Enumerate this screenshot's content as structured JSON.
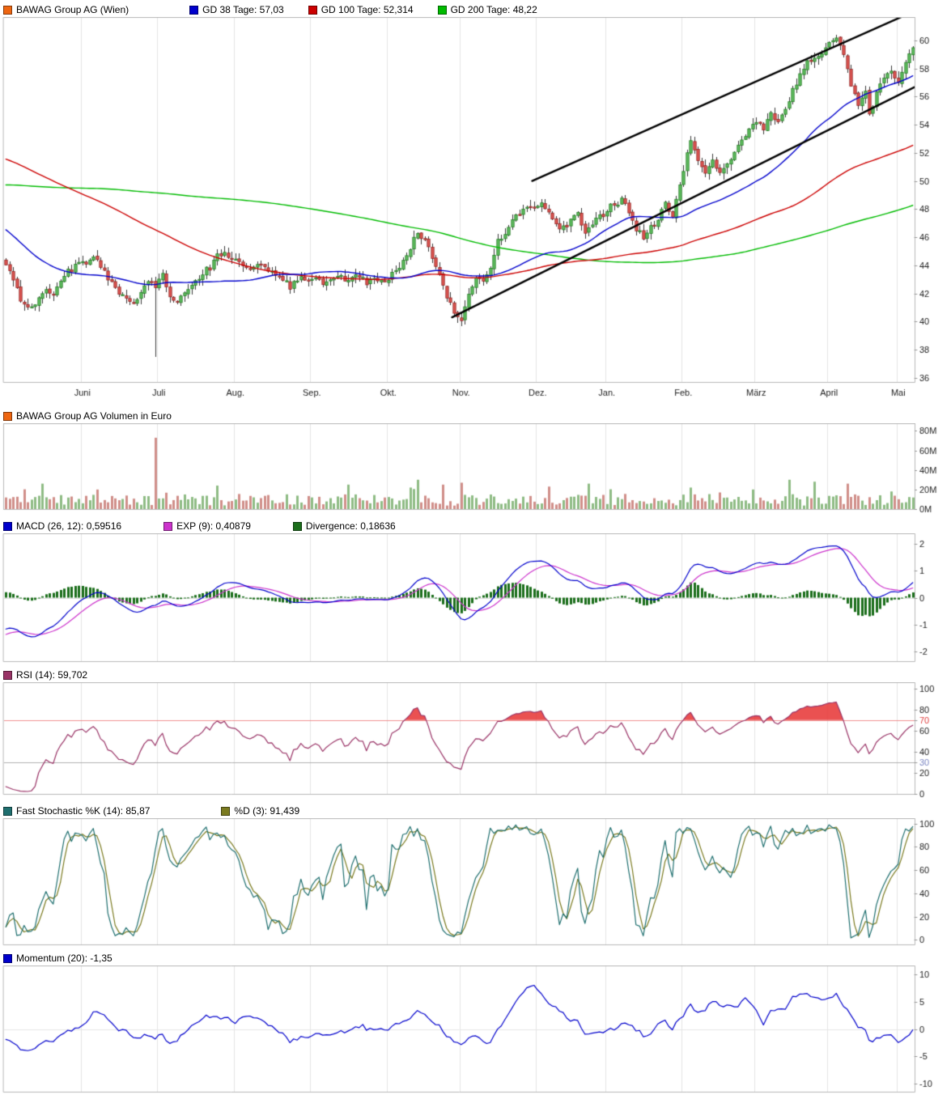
{
  "legends": {
    "price": {
      "items": [
        {
          "label": "BAWAG Group AG (Wien)",
          "color": "#ee6611"
        },
        {
          "label": "GD 38 Tage: 57,03",
          "color": "#0000cc"
        },
        {
          "label": "GD 100 Tage: 52,314",
          "color": "#cc0000"
        },
        {
          "label": "GD 200 Tage: 48,22",
          "color": "#00bb00"
        }
      ]
    },
    "volume": {
      "items": [
        {
          "label": "BAWAG Group AG Volumen in Euro",
          "color": "#ee6611"
        }
      ]
    },
    "macd": {
      "items": [
        {
          "label": "MACD (26, 12): 0,59516",
          "color": "#0000cc"
        },
        {
          "label": "EXP (9): 0,40879",
          "color": "#cc33cc"
        },
        {
          "label": "Divergence: 0,18636",
          "color": "#1b6e1b"
        }
      ]
    },
    "rsi": {
      "items": [
        {
          "label": "RSI (14): 59,702",
          "color": "#993366"
        }
      ]
    },
    "stochastic": {
      "items": [
        {
          "label": "Fast Stochastic %K (14): 85,87",
          "color": "#1f6f6f"
        },
        {
          "label": "%D (3): 91,439",
          "color": "#7a7a1f"
        }
      ]
    },
    "momentum": {
      "items": [
        {
          "label": "Momentum (20): -1,35",
          "color": "#0000cc"
        }
      ]
    }
  },
  "chart_data": [
    {
      "panel": "price",
      "type": "candlestick",
      "title": "BAWAG Group AG (Wien)",
      "days_total": 250,
      "x_ticks": {
        "labels": [
          "Juni",
          "Juli",
          "Aug.",
          "Sep.",
          "Okt.",
          "Nov.",
          "Dez.",
          "Jan.",
          "Feb.",
          "März",
          "April",
          "Mai"
        ],
        "days": [
          21,
          42,
          63,
          84,
          105,
          125,
          146,
          165,
          186,
          206,
          226,
          245
        ]
      },
      "y_ticks": [
        36,
        38,
        40,
        42,
        44,
        46,
        48,
        50,
        52,
        54,
        56,
        58,
        60
      ],
      "y_range": [
        35.7,
        61.6
      ],
      "close_anchors": [
        [
          0,
          43.8
        ],
        [
          2,
          43.0
        ],
        [
          4,
          41.6
        ],
        [
          6,
          40.9
        ],
        [
          8,
          41.3
        ],
        [
          10,
          42.2
        ],
        [
          13,
          42.0
        ],
        [
          16,
          43.4
        ],
        [
          19,
          43.9
        ],
        [
          22,
          44.3
        ],
        [
          24,
          44.7
        ],
        [
          26,
          43.8
        ],
        [
          29,
          42.6
        ],
        [
          32,
          41.8
        ],
        [
          35,
          41.4
        ],
        [
          38,
          42.6
        ],
        [
          40,
          42.9
        ],
        [
          41,
          42.6
        ],
        [
          43,
          43.3
        ],
        [
          45,
          41.9
        ],
        [
          47,
          41.4
        ],
        [
          50,
          42.2
        ],
        [
          53,
          43.1
        ],
        [
          56,
          43.9
        ],
        [
          58,
          44.6
        ],
        [
          60,
          44.9
        ],
        [
          63,
          44.2
        ],
        [
          66,
          43.7
        ],
        [
          69,
          43.9
        ],
        [
          72,
          43.6
        ],
        [
          75,
          43.2
        ],
        [
          78,
          42.5
        ],
        [
          81,
          43.0
        ],
        [
          84,
          43.1
        ],
        [
          87,
          42.8
        ],
        [
          90,
          43.3
        ],
        [
          93,
          42.9
        ],
        [
          96,
          43.2
        ],
        [
          99,
          42.8
        ],
        [
          102,
          43.1
        ],
        [
          105,
          43.0
        ],
        [
          107,
          43.6
        ],
        [
          109,
          44.4
        ],
        [
          111,
          45.3
        ],
        [
          113,
          46.2
        ],
        [
          115,
          45.9
        ],
        [
          117,
          44.6
        ],
        [
          119,
          43.4
        ],
        [
          121,
          41.9
        ],
        [
          123,
          40.4
        ],
        [
          125,
          39.9
        ],
        [
          127,
          41.8
        ],
        [
          129,
          43.3
        ],
        [
          131,
          43.0
        ],
        [
          133,
          44.0
        ],
        [
          135,
          45.6
        ],
        [
          137,
          46.3
        ],
        [
          139,
          47.2
        ],
        [
          141,
          47.6
        ],
        [
          143,
          47.9
        ],
        [
          145,
          48.1
        ],
        [
          147,
          48.3
        ],
        [
          149,
          47.6
        ],
        [
          151,
          46.8
        ],
        [
          153,
          46.6
        ],
        [
          155,
          47.3
        ],
        [
          157,
          47.6
        ],
        [
          159,
          46.2
        ],
        [
          161,
          46.9
        ],
        [
          163,
          47.5
        ],
        [
          165,
          47.9
        ],
        [
          167,
          48.4
        ],
        [
          169,
          48.6
        ],
        [
          171,
          47.8
        ],
        [
          173,
          46.6
        ],
        [
          175,
          45.9
        ],
        [
          177,
          46.6
        ],
        [
          179,
          47.2
        ],
        [
          181,
          48.3
        ],
        [
          183,
          47.6
        ],
        [
          185,
          49.5
        ],
        [
          187,
          51.8
        ],
        [
          188,
          52.9
        ],
        [
          190,
          51.6
        ],
        [
          192,
          50.6
        ],
        [
          194,
          51.4
        ],
        [
          196,
          50.7
        ],
        [
          198,
          51.1
        ],
        [
          200,
          51.9
        ],
        [
          202,
          52.8
        ],
        [
          204,
          53.6
        ],
        [
          206,
          54.3
        ],
        [
          208,
          53.6
        ],
        [
          210,
          54.9
        ],
        [
          212,
          54.1
        ],
        [
          214,
          55.3
        ],
        [
          216,
          56.4
        ],
        [
          218,
          57.6
        ],
        [
          220,
          58.4
        ],
        [
          222,
          58.9
        ],
        [
          224,
          59.2
        ],
        [
          226,
          59.8
        ],
        [
          228,
          60.3
        ],
        [
          230,
          58.9
        ],
        [
          232,
          56.8
        ],
        [
          234,
          55.2
        ],
        [
          236,
          56.3
        ],
        [
          237,
          54.9
        ],
        [
          239,
          56.1
        ],
        [
          241,
          57.4
        ],
        [
          243,
          57.9
        ],
        [
          245,
          57.1
        ],
        [
          247,
          58.6
        ],
        [
          249,
          59.3
        ]
      ],
      "prehistory_close_anchors": [
        [
          -200,
          44.2
        ],
        [
          -180,
          45.2
        ],
        [
          -160,
          46.6
        ],
        [
          -140,
          48.2
        ],
        [
          -120,
          50.6
        ],
        [
          -100,
          53.0
        ],
        [
          -80,
          55.5
        ],
        [
          -60,
          55.5
        ],
        [
          -48,
          54.5
        ],
        [
          -38,
          52.0
        ],
        [
          -30,
          49.5
        ],
        [
          -25,
          47.0
        ],
        [
          -18,
          45.5
        ],
        [
          -10,
          44.5
        ],
        [
          -5,
          44.0
        ],
        [
          -1,
          43.9
        ]
      ],
      "wick_low_overrides": {
        "41": 37.5
      },
      "moving_averages": [
        {
          "name": "GD 38 Tage",
          "period": 38,
          "last_value": "57,03",
          "color": "#0000cc"
        },
        {
          "name": "GD 100 Tage",
          "period": 100,
          "last_value": "52,314",
          "color": "#cc0000"
        },
        {
          "name": "GD 200 Tage",
          "period": 200,
          "last_value": "48,22",
          "color": "#00bb00"
        }
      ],
      "trend_channel": {
        "color": "#000000",
        "width": 2.4,
        "lines": [
          [
            123,
            40.3,
            258,
            57.7
          ],
          [
            145,
            50.0,
            258,
            63.0
          ]
        ]
      },
      "candle_up_color": "#5cb85c",
      "candle_down_color": "#d9534f"
    },
    {
      "panel": "volume",
      "type": "bar",
      "title": "BAWAG Group AG Volumen in Euro",
      "y_ticks": [
        80,
        60,
        40,
        20,
        0
      ],
      "y_suffix": "M",
      "y_range": [
        0,
        87
      ],
      "up_color": "#8fbc85",
      "down_color": "#d08f8a",
      "volume_spikes_millions": {
        "10": 26,
        "25": 20,
        "41": 73,
        "58": 24,
        "94": 25,
        "111": 22,
        "113": 30,
        "120": 25,
        "125": 27,
        "149": 23,
        "160": 26,
        "188": 22,
        "205": 20,
        "215": 30,
        "222": 28,
        "231": 26,
        "243": 18
      }
    },
    {
      "panel": "macd",
      "type": "macd",
      "params": {
        "fast": 12,
        "slow": 26,
        "signal": 9
      },
      "series": [
        {
          "name": "MACD (26, 12)",
          "value": "0,59516",
          "color": "#0000cc"
        },
        {
          "name": "EXP (9)",
          "value": "0,40879",
          "color": "#cc33cc"
        },
        {
          "name": "Divergence",
          "value": "0,18636",
          "color": "#1b6e1b"
        }
      ],
      "y_ticks": [
        2,
        1,
        0,
        -1,
        -2
      ],
      "y_range": [
        -2.35,
        2.35
      ]
    },
    {
      "panel": "rsi",
      "type": "rsi",
      "period": 14,
      "series": [
        {
          "name": "RSI (14)",
          "value": "59,702",
          "color": "#993366"
        }
      ],
      "levels": {
        "overbought": 70,
        "oversold": 30
      },
      "level_colors": {
        "70": "#e04040",
        "30": "#7b86c2"
      },
      "fill_above_70": "#e63232",
      "y_ticks": [
        100,
        80,
        70,
        60,
        40,
        30,
        20,
        0
      ],
      "y_range": [
        0,
        105
      ]
    },
    {
      "panel": "stochastic",
      "type": "stochastic",
      "series": [
        {
          "name": "Fast Stochastic %K (14)",
          "value": "85,87",
          "color": "#1f6f6f",
          "period": 14
        },
        {
          "name": "%D (3)",
          "value": "91,439",
          "color": "#7a7a1f",
          "period": 3
        }
      ],
      "y_ticks": [
        100,
        80,
        60,
        40,
        20,
        0
      ],
      "y_range": [
        -4,
        104
      ]
    },
    {
      "panel": "momentum",
      "type": "momentum",
      "series": [
        {
          "name": "Momentum (20)",
          "value": "-1,35",
          "color": "#0000cc",
          "period": 20
        }
      ],
      "y_ticks": [
        10,
        5,
        0,
        -5,
        -10
      ],
      "y_range": [
        -11.5,
        11.5
      ]
    }
  ]
}
